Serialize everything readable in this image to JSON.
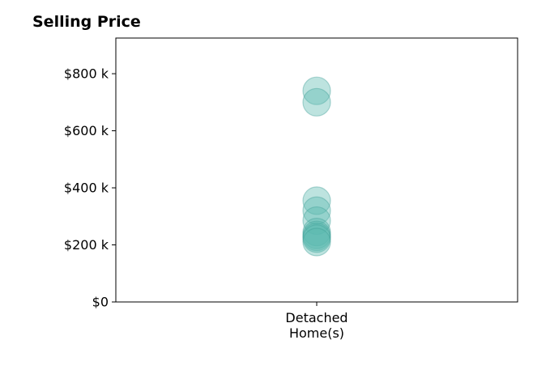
{
  "chart_data": {
    "type": "scatter",
    "title": "Selling Price",
    "xlabel": "",
    "ylabel": "",
    "categories": [
      [
        "Detached",
        "Home(s)"
      ]
    ],
    "ylim": [
      0,
      925000
    ],
    "yticks": [
      0,
      200000,
      400000,
      600000,
      800000
    ],
    "ytick_labels": [
      "$0",
      "$200 k",
      "$400 k",
      "$600 k",
      "$800 k"
    ],
    "grid": false,
    "series": [
      {
        "category_index": 0,
        "values": [
          740000,
          700000,
          355000,
          320000,
          285000,
          245000,
          235000,
          228000,
          222000,
          210000
        ],
        "color": "#5bb8b0",
        "edge_color": "#3f9e96",
        "opacity": 0.4
      }
    ]
  }
}
